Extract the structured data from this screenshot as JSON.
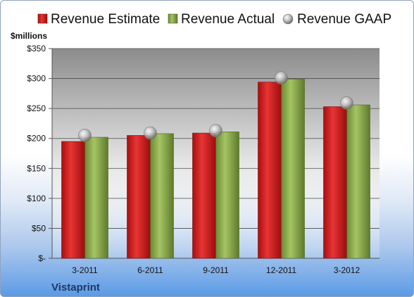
{
  "chart_data": {
    "type": "bar",
    "title": "",
    "xlabel": "",
    "ylabel": "",
    "unit_label": "$millions",
    "company": "Vistaprint",
    "categories": [
      "3-2011",
      "6-2011",
      "9-2011",
      "12-2011",
      "3-2012"
    ],
    "ylim": [
      0,
      350
    ],
    "y_ticks": [
      0,
      50,
      100,
      150,
      200,
      250,
      300,
      350
    ],
    "y_tick_labels": [
      "$-",
      "$50",
      "$100",
      "$150",
      "$200",
      "$250",
      "$300",
      "$350"
    ],
    "grid": true,
    "legend_position": "top",
    "series": [
      {
        "name": "Revenue Estimate",
        "kind": "bar",
        "color": "#d42222",
        "values": [
          195,
          205,
          209,
          294,
          253
        ]
      },
      {
        "name": "Revenue Actual",
        "kind": "bar",
        "color": "#8fac50",
        "values": [
          202,
          208,
          211,
          299,
          256
        ]
      },
      {
        "name": "Revenue GAAP",
        "kind": "marker",
        "color": "#b8b8b8",
        "values": [
          205,
          209,
          213,
          301,
          259
        ]
      }
    ]
  }
}
